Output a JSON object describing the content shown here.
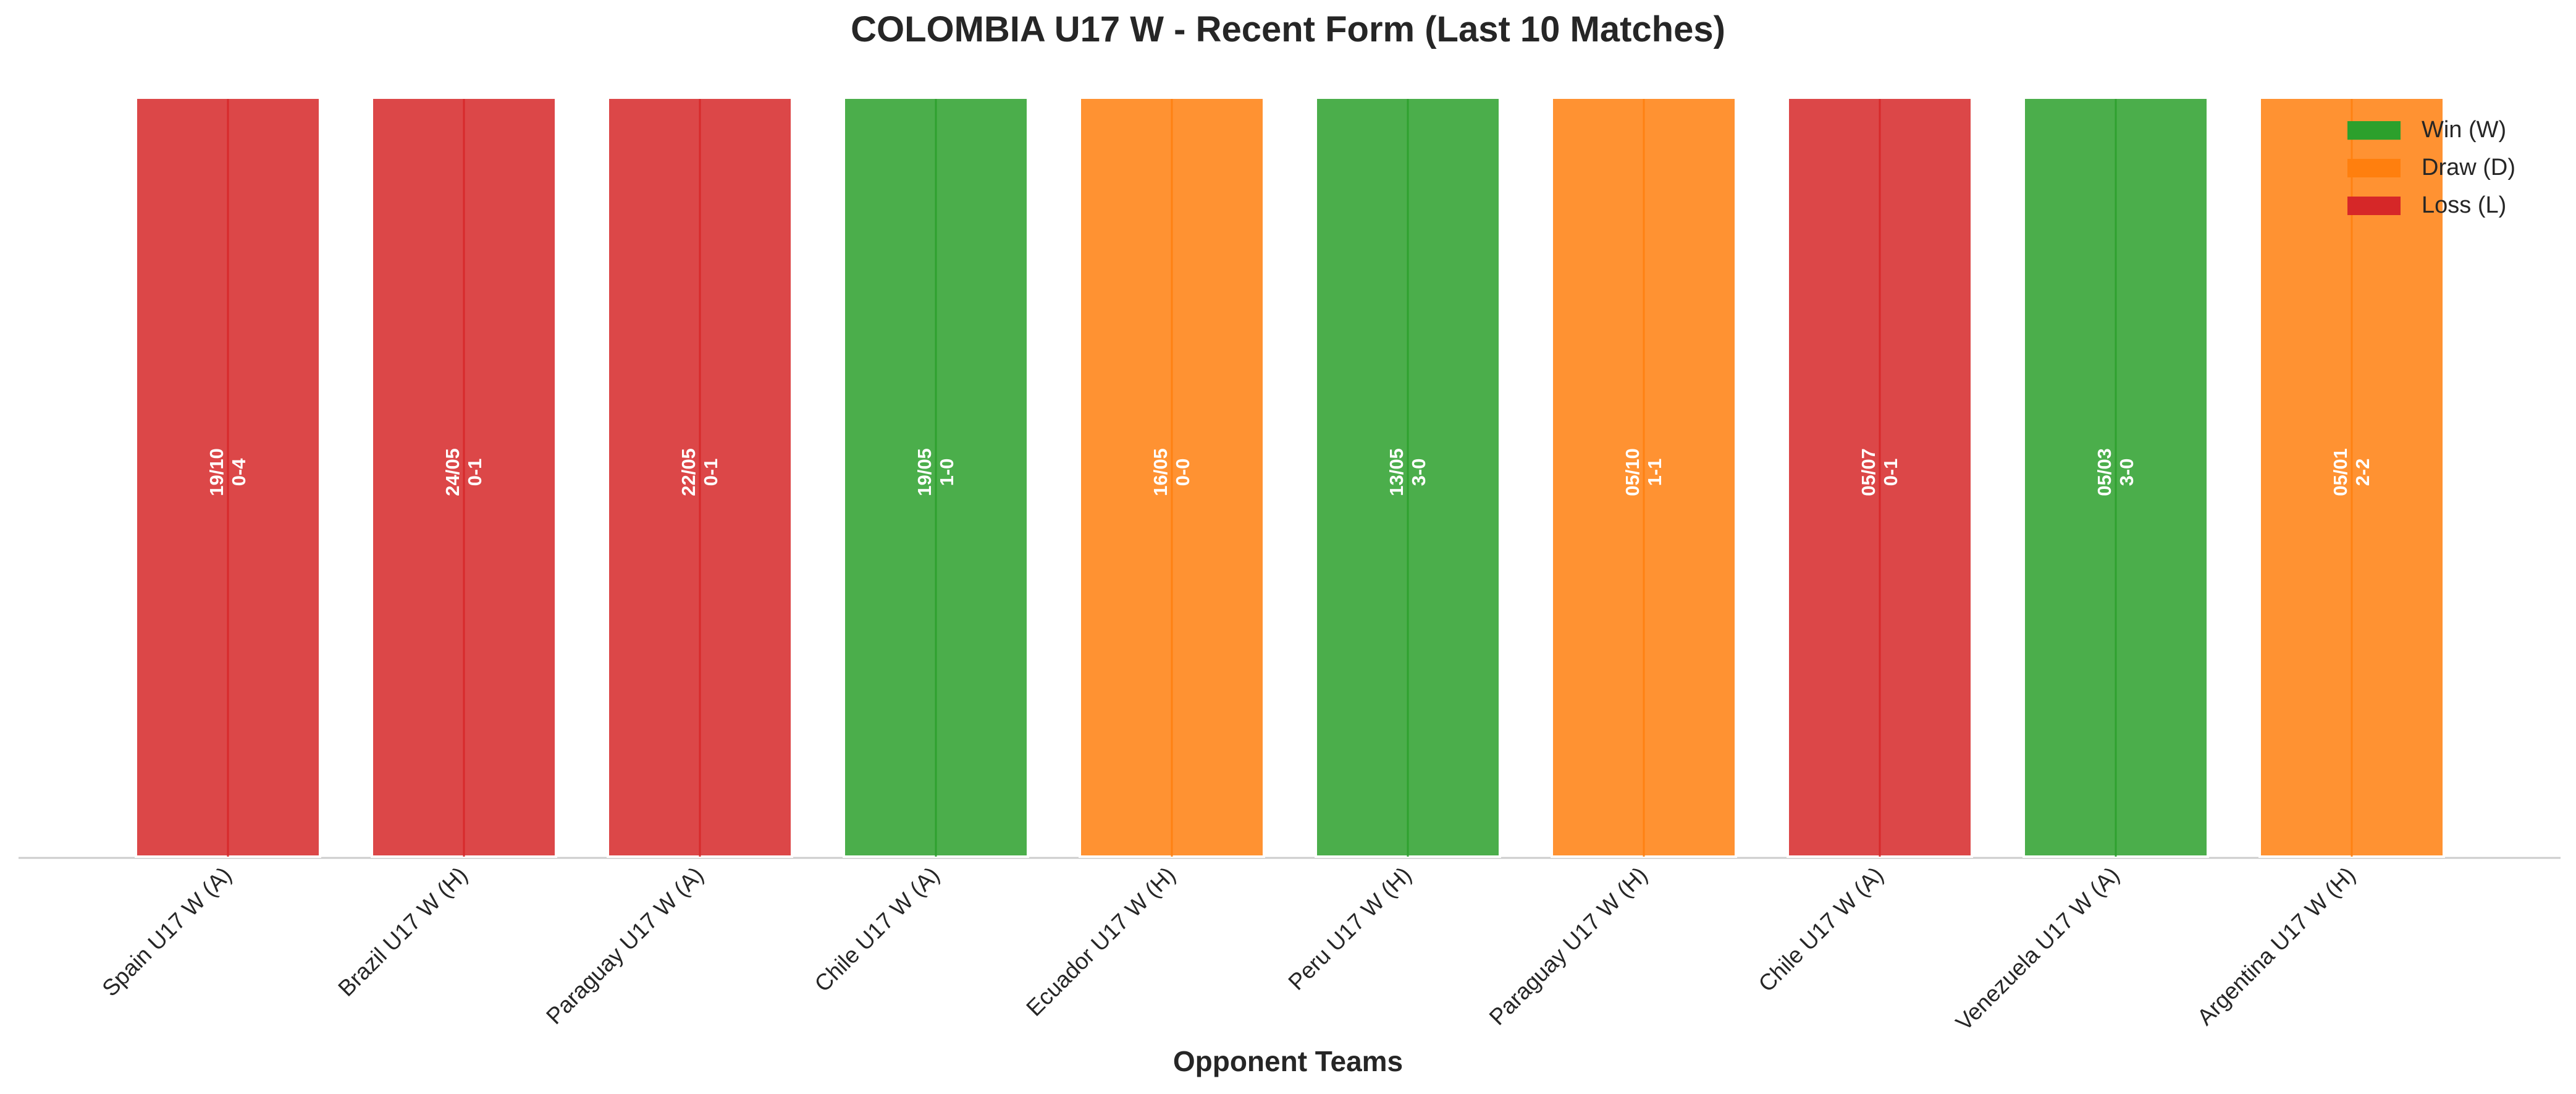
{
  "chart_data": {
    "type": "bar",
    "title": "COLOMBIA U17 W - Recent Form (Last 10 Matches)",
    "xlabel": "Opponent Teams",
    "ylabel": "",
    "ylim": [
      0,
      1
    ],
    "grid": false,
    "legend_position": "top-right",
    "categories": [
      "Spain U17 W (A)",
      "Brazil U17 W (H)",
      "Paraguay U17 W (A)",
      "Chile U17 W (A)",
      "Ecuador U17 W (H)",
      "Peru U17 W (H)",
      "Paraguay U17 W (H)",
      "Chile U17 W (A)",
      "Venezuela U17 W (A)",
      "Argentina U17 W (H)"
    ],
    "values": [
      1,
      1,
      1,
      1,
      1,
      1,
      1,
      1,
      1,
      1
    ],
    "results": [
      "L",
      "L",
      "L",
      "W",
      "D",
      "W",
      "D",
      "L",
      "W",
      "D"
    ],
    "dates": [
      "19/10",
      "24/05",
      "22/05",
      "19/05",
      "16/05",
      "13/05",
      "05/10",
      "05/07",
      "05/03",
      "05/01"
    ],
    "scores": [
      "0-4",
      "0-1",
      "0-1",
      "1-0",
      "0-0",
      "3-0",
      "1-1",
      "0-1",
      "3-0",
      "2-2"
    ],
    "legend": [
      {
        "key": "W",
        "label": "Win (W)",
        "color": "#2ca02c"
      },
      {
        "key": "D",
        "label": "Draw (D)",
        "color": "#ff7f0e"
      },
      {
        "key": "L",
        "label": "Loss (L)",
        "color": "#d62728"
      }
    ]
  }
}
